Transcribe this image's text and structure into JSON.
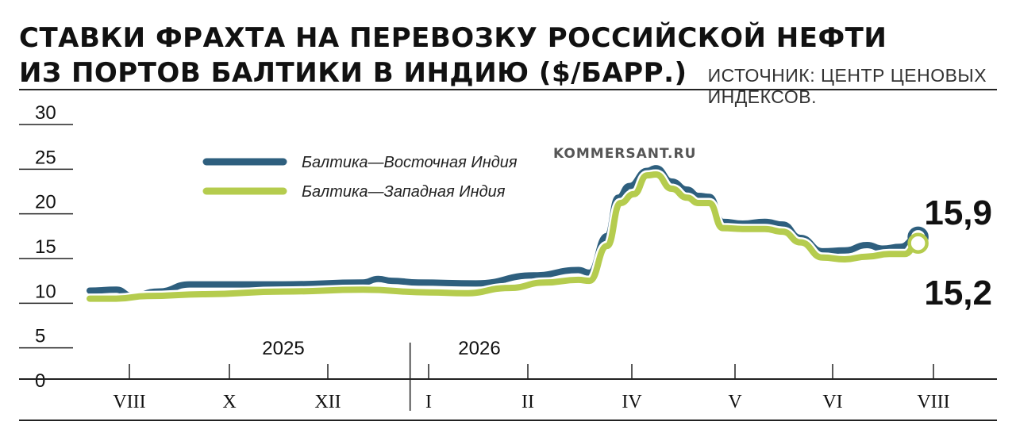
{
  "header": {
    "title_line1": "СТАВКИ ФРАХТА НА ПЕРЕВОЗКУ РОССИЙСКОЙ НЕФТИ",
    "title_line2": "ИЗ ПОРТОВ БАЛТИКИ В ИНДИЮ ($/БАРР.)",
    "source": "ИСТОЧНИК: ЦЕНТР ЦЕНОВЫХ ИНДЕКСОВ."
  },
  "watermark": "KOMMERSANT.RU",
  "colors": {
    "east": "#2e5f7e",
    "west": "#b5cc4e",
    "text": "#111111"
  },
  "chart_data": {
    "type": "line",
    "title": "СТАВКИ ФРАХТА НА ПЕРЕВОЗКУ РОССИЙСКОЙ НЕФТИ ИЗ ПОРТОВ БАЛТИКИ В ИНДИЮ ($/БАРР.)",
    "ylim": [
      0,
      30
    ],
    "yticks": [
      "30",
      "25",
      "20",
      "15",
      "10",
      "5",
      "0"
    ],
    "xlim": [
      "2025-07-20",
      "2026-08-10"
    ],
    "years": [
      {
        "label": "2025",
        "x": "2025-10-15"
      },
      {
        "label": "2026",
        "x": "2026-02-15"
      }
    ],
    "year_divider": "2026-01-01",
    "months": [
      {
        "label": "VIII",
        "x": "2025-08-01"
      },
      {
        "label": "X",
        "x": "2025-10-01"
      },
      {
        "label": "XII",
        "x": "2025-12-01"
      },
      {
        "label": "I",
        "x": "2026-01-01"
      },
      {
        "label": "II",
        "x": "2026-03-01"
      },
      {
        "label": "IV",
        "x": "2026-04-01"
      },
      {
        "label": "V",
        "x": "2026-05-01"
      },
      {
        "label": "VI",
        "x": "2026-06-01"
      },
      {
        "label": "VIII",
        "x": "2026-08-01"
      }
    ],
    "legend": [
      {
        "name": "Балтика—Восточная Индия",
        "color": "#2e5f7e"
      },
      {
        "name": "Балтика—Западная Индия",
        "color": "#b5cc4e"
      }
    ],
    "series": [
      {
        "name": "Балтика—Восточная Индия",
        "color": "#2e5f7e",
        "end_label": "15,9",
        "x": [
          "2025-07-20",
          "2025-08-01",
          "2025-08-08",
          "2025-08-20",
          "2025-09-03",
          "2025-09-20",
          "2025-10-15",
          "2025-11-20",
          "2025-11-27",
          "2025-12-03",
          "2025-12-15",
          "2026-01-10",
          "2026-02-05",
          "2026-02-25",
          "2026-03-02",
          "2026-03-10",
          "2026-03-15",
          "2026-03-20",
          "2026-03-28",
          "2026-04-01",
          "2026-04-08",
          "2026-04-15",
          "2026-04-20",
          "2026-04-25",
          "2026-05-01",
          "2026-05-10",
          "2026-05-20",
          "2026-05-28",
          "2026-06-05",
          "2026-06-15",
          "2026-06-25",
          "2026-07-05",
          "2026-07-12",
          "2026-07-20",
          "2026-07-28"
        ],
        "y": [
          9.9,
          10.0,
          9.3,
          9.8,
          10.6,
          10.6,
          10.6,
          10.8,
          11.2,
          11.0,
          10.8,
          10.7,
          11.6,
          12.2,
          11.9,
          16.0,
          20.3,
          21.6,
          23.3,
          23.6,
          22.1,
          21.2,
          20.5,
          20.4,
          17.6,
          17.4,
          17.6,
          17.3,
          15.8,
          14.3,
          14.4,
          15.0,
          14.6,
          14.8,
          15.9
        ]
      },
      {
        "name": "Балтика—Западная Индия",
        "color": "#b5cc4e",
        "end_label": "15,2",
        "x": [
          "2025-07-20",
          "2025-08-01",
          "2025-08-15",
          "2025-09-10",
          "2025-10-15",
          "2025-11-20",
          "2025-12-20",
          "2026-01-05",
          "2026-01-25",
          "2026-02-10",
          "2026-02-25",
          "2026-03-02",
          "2026-03-10",
          "2026-03-16",
          "2026-03-22",
          "2026-03-28",
          "2026-04-01",
          "2026-04-08",
          "2026-04-15",
          "2026-04-20",
          "2026-04-25",
          "2026-05-01",
          "2026-05-10",
          "2026-05-20",
          "2026-05-28",
          "2026-06-05",
          "2026-06-15",
          "2026-06-25",
          "2026-07-05",
          "2026-07-15",
          "2026-07-22",
          "2026-07-28"
        ],
        "y": [
          9.0,
          9.0,
          9.3,
          9.5,
          9.8,
          10.0,
          9.7,
          9.6,
          10.2,
          10.8,
          11.1,
          11.0,
          14.9,
          19.7,
          20.7,
          22.8,
          22.9,
          21.3,
          20.3,
          19.7,
          19.7,
          16.9,
          16.8,
          16.8,
          16.5,
          15.3,
          13.6,
          13.4,
          13.7,
          14.0,
          14.0,
          15.2
        ]
      }
    ]
  }
}
